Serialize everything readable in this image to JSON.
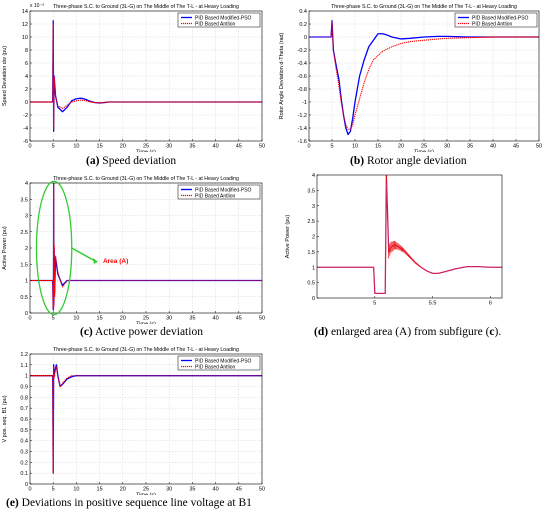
{
  "colors": {
    "modified_pso": "#0000ff",
    "antlion": "#ff0000",
    "axes": "#000000",
    "grid": "#c8c8c8",
    "annotation": "#33cc33",
    "annotation_text": "#ff0000"
  },
  "captions": {
    "a": {
      "label": "(a)",
      "text": " Speed deviation"
    },
    "b": {
      "label": "(b)",
      "text": " Rotor angle deviation"
    },
    "c": {
      "label": "(c)",
      "text": " Active power deviation"
    },
    "d": {
      "label": "(d)",
      "text_pre": " enlarged area (A) from subfigure (",
      "ref": "c",
      "text_post": ")."
    },
    "e": {
      "label": "(e)",
      "text": " Deviations in positive sequence line voltage at B1"
    }
  },
  "chart_data": [
    {
      "id": "a",
      "type": "line",
      "title": "Three-phase S.C. to Ground (3L-G) on The Middle of The T-L - at Heavy Loading",
      "xlabel": "Time (s)",
      "ylabel": "Speed Deviation dw (pu)",
      "exponent": "x 10⁻³",
      "xlim": [
        0,
        50
      ],
      "ylim": [
        -6,
        14
      ],
      "xticks": [
        "0",
        "5",
        "10",
        "15",
        "20",
        "25",
        "30",
        "35",
        "40",
        "45",
        "50"
      ],
      "yticks": [
        "-6",
        "-4",
        "-2",
        "0",
        "2",
        "4",
        "6",
        "8",
        "10",
        "12",
        "14"
      ],
      "grid": true,
      "legend_position": "top-right",
      "legend": [
        "PID Based Modified-PSO",
        "PID Based Antlion"
      ],
      "series": [
        {
          "name": "PID Based Modified-PSO",
          "style": "solid",
          "x": [
            0,
            4.9,
            5,
            5.1,
            5.2,
            5.5,
            6,
            7,
            8,
            9,
            10,
            11,
            12,
            13,
            14,
            15,
            16,
            17,
            18,
            19,
            20,
            25,
            30,
            35,
            40,
            45,
            50
          ],
          "y": [
            0,
            0,
            12.5,
            -4.5,
            4,
            1,
            -0.8,
            -1.5,
            -0.8,
            0.2,
            0.5,
            0.6,
            0.4,
            0.1,
            -0.1,
            -0.15,
            -0.1,
            0,
            0,
            0,
            0,
            0,
            0,
            0,
            0,
            0,
            0
          ]
        },
        {
          "name": "PID Based Antlion",
          "style": "dotted",
          "x": [
            0,
            4.9,
            5,
            5.1,
            5.2,
            5.5,
            6,
            7,
            8,
            9,
            10,
            11,
            12,
            13,
            14,
            15,
            16,
            17,
            18,
            19,
            20,
            25,
            30,
            35,
            40,
            45,
            50
          ],
          "y": [
            0,
            0,
            12,
            -4.2,
            3.8,
            0.9,
            -0.6,
            -1,
            -0.5,
            0,
            0.2,
            0.3,
            0.2,
            0,
            -0.1,
            -0.1,
            -0.05,
            0,
            0,
            0,
            0,
            0,
            0,
            0,
            0,
            0,
            0
          ]
        }
      ]
    },
    {
      "id": "b",
      "type": "line",
      "title": "Three-phase S.C. to Ground (3L-G) on The Middle of The T-L - at Heavy Loading",
      "xlabel": "Time (s)",
      "ylabel": "Rotor Angle Deviation d-Theta (rad)",
      "xlim": [
        0,
        50
      ],
      "ylim": [
        -1.6,
        0.4
      ],
      "xticks": [
        "0",
        "5",
        "10",
        "15",
        "20",
        "25",
        "30",
        "35",
        "40",
        "45",
        "50"
      ],
      "yticks": [
        "-1.6",
        "-1.4",
        "-1.2",
        "-1",
        "-0.8",
        "-0.6",
        "-0.4",
        "-0.2",
        "0",
        "0.2",
        "0.4"
      ],
      "grid": true,
      "legend_position": "top-right",
      "legend": [
        "PID Based Modified-PSO",
        "PID Based Antlion"
      ],
      "series": [
        {
          "name": "PID Based Modified-PSO",
          "style": "solid",
          "x": [
            0,
            4.8,
            5,
            5.3,
            5.8,
            6.5,
            7,
            7.5,
            8,
            8.5,
            9,
            9.5,
            10,
            11,
            12,
            13,
            14,
            15,
            16,
            17,
            18,
            20,
            22,
            25,
            28,
            30,
            35,
            40,
            45,
            50
          ],
          "y": [
            0,
            0,
            0.25,
            -0.2,
            -0.4,
            -0.65,
            -0.95,
            -1.2,
            -1.4,
            -1.5,
            -1.45,
            -1.25,
            -1.0,
            -0.6,
            -0.35,
            -0.15,
            -0.05,
            0.05,
            0.05,
            0.03,
            0,
            -0.03,
            -0.02,
            0,
            0.01,
            0.01,
            0,
            0,
            0,
            0
          ]
        },
        {
          "name": "PID Based Antlion",
          "style": "dotted",
          "x": [
            0,
            4.8,
            5,
            5.3,
            5.8,
            6.5,
            7,
            7.5,
            8,
            8.5,
            9,
            9.5,
            10,
            11,
            12,
            13,
            14,
            16,
            18,
            20,
            22,
            25,
            28,
            30,
            35,
            40,
            45,
            50
          ],
          "y": [
            0,
            0,
            0.22,
            -0.2,
            -0.45,
            -0.75,
            -1.0,
            -1.2,
            -1.35,
            -1.42,
            -1.42,
            -1.35,
            -1.2,
            -0.95,
            -0.7,
            -0.5,
            -0.35,
            -0.22,
            -0.15,
            -0.1,
            -0.07,
            -0.05,
            -0.03,
            -0.02,
            -0.01,
            0,
            0,
            0
          ]
        }
      ]
    },
    {
      "id": "c",
      "type": "line",
      "title": "Three-phase S.C. to Ground (3L-G) on The Middle of The T-L - at Heavy Loading",
      "xlabel": "Time (s)",
      "ylabel": "Active Power (pu)",
      "xlim": [
        0,
        50
      ],
      "ylim": [
        0,
        4
      ],
      "xticks": [
        "0",
        "5",
        "10",
        "15",
        "20",
        "25",
        "30",
        "35",
        "40",
        "45",
        "50"
      ],
      "yticks": [
        "0",
        "0.5",
        "1",
        "1.5",
        "2",
        "2.5",
        "3",
        "3.5",
        "4"
      ],
      "grid": true,
      "legend_position": "top-right",
      "legend": [
        "PID Based Modified-PSO",
        "PID Based Antlion"
      ],
      "annotation": {
        "text": "Area (A)",
        "ellipse_center": [
          5.2,
          2.0
        ],
        "ellipse_radius": [
          3.8,
          2.05
        ]
      },
      "series": [
        {
          "name": "PID Based Modified-PSO",
          "style": "solid",
          "x": [
            0,
            4.9,
            5,
            5.05,
            5.1,
            5.15,
            5.2,
            5.3,
            5.5,
            6,
            7,
            8,
            10,
            15,
            20,
            30,
            40,
            50
          ],
          "y": [
            1,
            1,
            0.1,
            0.1,
            4,
            0.3,
            2,
            0.6,
            1.7,
            1.2,
            0.85,
            1,
            1,
            1,
            1,
            1,
            1,
            1
          ]
        },
        {
          "name": "PID Based Antlion",
          "style": "dotted",
          "x": [
            0,
            4.9,
            5,
            5.05,
            5.1,
            5.15,
            5.2,
            5.3,
            5.5,
            6,
            7,
            8,
            10,
            15,
            20,
            30,
            40,
            50
          ],
          "y": [
            1,
            1,
            0.1,
            0.1,
            4,
            0.2,
            2.1,
            0.5,
            1.75,
            1.25,
            0.8,
            1,
            1,
            1,
            1,
            1,
            1,
            1
          ]
        }
      ]
    },
    {
      "id": "d",
      "type": "line",
      "title": "",
      "xlabel": "",
      "ylabel": "Active Power (pu)",
      "xlim": [
        4.5,
        6.1
      ],
      "ylim": [
        0,
        4
      ],
      "xticks": [
        "5",
        "5.5",
        "6"
      ],
      "yticks": [
        "0",
        "0.5",
        "1",
        "1.5",
        "2",
        "2.5",
        "3",
        "3.5",
        "4"
      ],
      "grid": false,
      "series": [
        {
          "name": "",
          "style": "solid",
          "x": [
            4.5,
            4.9,
            4.99,
            5.0,
            5.09,
            5.1,
            5.11,
            5.12,
            5.14,
            5.17,
            5.2,
            5.25,
            5.3,
            5.35,
            5.4,
            5.45,
            5.5,
            5.55,
            5.6,
            5.7,
            5.8,
            5.9,
            6.0,
            6.1
          ],
          "y": [
            1,
            1,
            1,
            0.15,
            0.15,
            4,
            2.8,
            1.5,
            1.65,
            1.72,
            1.68,
            1.55,
            1.35,
            1.15,
            1.0,
            0.88,
            0.8,
            0.8,
            0.85,
            0.95,
            1.02,
            1.02,
            1.0,
            1.0
          ]
        }
      ]
    },
    {
      "id": "e",
      "type": "line",
      "title": "Three-phase S.C. to Ground (3L-G) on The Middle of The T-L - at Heavy Loading",
      "xlabel": "Time (s)",
      "ylabel": "V pos. seq. B1 (pu)",
      "xlim": [
        0,
        50
      ],
      "ylim": [
        0,
        1.2
      ],
      "xticks": [
        "0",
        "5",
        "10",
        "15",
        "20",
        "25",
        "30",
        "35",
        "40",
        "45",
        "50"
      ],
      "yticks": [
        "0",
        "0.1",
        "0.2",
        "0.3",
        "0.4",
        "0.5",
        "0.6",
        "0.7",
        "0.8",
        "0.9",
        "1",
        "1.1",
        "1.2"
      ],
      "grid": true,
      "legend_position": "top-right",
      "legend": [
        "PID Based Modified-PSO",
        "PID Based Antlion"
      ],
      "series": [
        {
          "name": "PID Based Modified-PSO",
          "style": "solid",
          "x": [
            0,
            4.9,
            5,
            5.1,
            5.2,
            5.4,
            5.7,
            6,
            6.5,
            7,
            8,
            9,
            10,
            12,
            15,
            20,
            30,
            40,
            50
          ],
          "y": [
            1,
            1,
            0.1,
            1.1,
            1.0,
            1.05,
            1.1,
            1.0,
            0.9,
            0.92,
            0.97,
            0.99,
            1,
            1,
            1,
            1,
            1,
            1,
            1
          ]
        },
        {
          "name": "PID Based Antlion",
          "style": "dotted",
          "x": [
            0,
            4.9,
            5,
            5.1,
            5.2,
            5.4,
            5.7,
            6,
            6.5,
            7,
            8,
            9,
            10,
            12,
            15,
            20,
            30,
            40,
            50
          ],
          "y": [
            1,
            1,
            0.1,
            1.08,
            0.98,
            1.04,
            1.08,
            0.99,
            0.9,
            0.93,
            0.98,
            1,
            1,
            1,
            1,
            1,
            1,
            1,
            1
          ]
        }
      ]
    }
  ]
}
